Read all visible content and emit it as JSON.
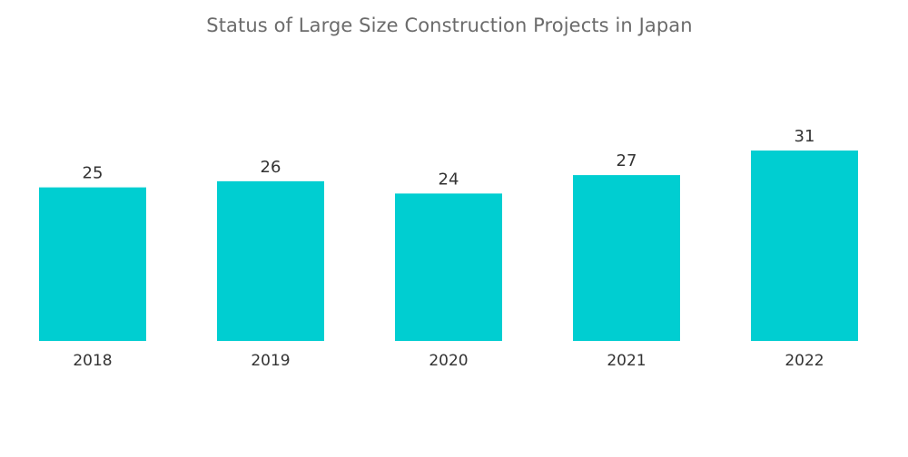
{
  "chart_data": {
    "type": "bar",
    "title": "Status of Large Size Construction Projects in Japan",
    "xlabel": "",
    "ylabel": "",
    "categories": [
      "2018",
      "2019",
      "2020",
      "2021",
      "2022"
    ],
    "values": [
      25,
      26,
      24,
      27,
      31
    ],
    "data_labels": [
      "25",
      "26",
      "24",
      "27",
      "31"
    ],
    "ylim": [
      0,
      31
    ],
    "grid": false,
    "legend": "none",
    "colors": {
      "bar": "#00CED1",
      "title": "#6B6B6B",
      "text": "#333333"
    }
  }
}
